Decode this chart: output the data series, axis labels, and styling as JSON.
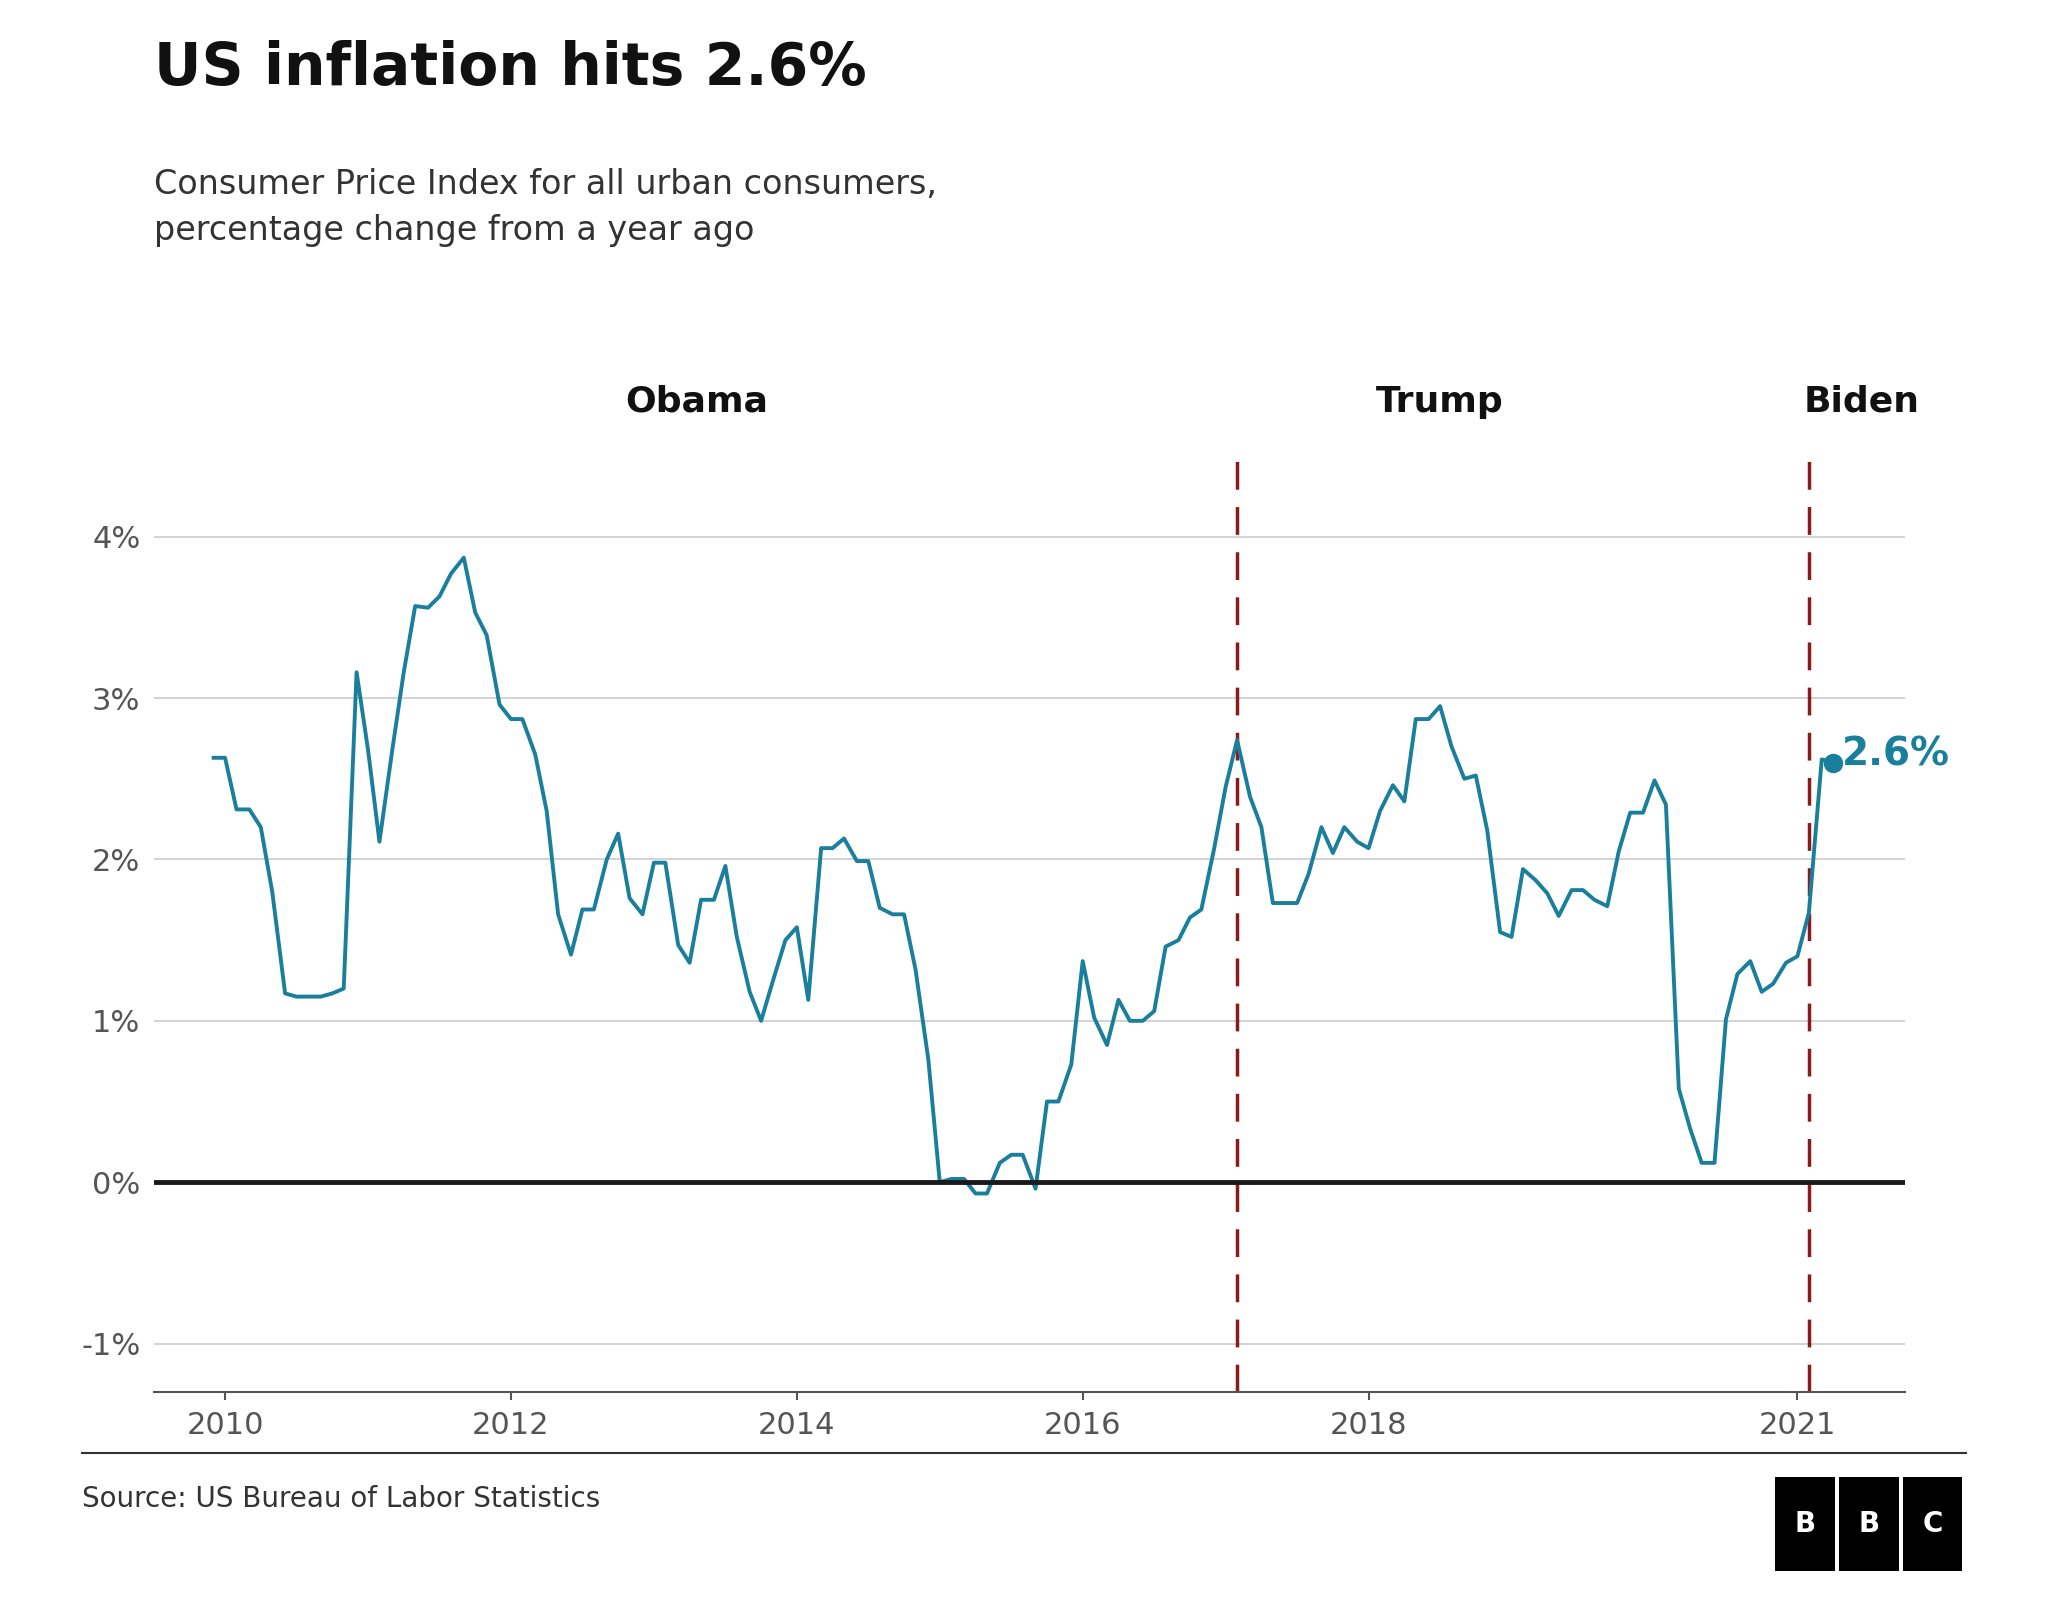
{
  "title": "US inflation hits 2.6%",
  "subtitle": "Consumer Price Index for all urban consumers,\npercentage change from a year ago",
  "source": "Source: US Bureau of Labor Statistics",
  "line_color": "#1a7f9c",
  "zero_line_color": "#1a1a1a",
  "grid_color": "#cccccc",
  "dashed_line_color": "#8b1a1a",
  "annotation_color": "#1a7f9c",
  "title_fontsize": 42,
  "subtitle_fontsize": 24,
  "axis_label_fontsize": 22,
  "annotation_fontsize": 28,
  "president_fontsize": 26,
  "source_fontsize": 20,
  "obama_x": 2013.3,
  "trump_x": 2018.5,
  "biden_x": 2021.45,
  "trump_line_x": 2017.08,
  "biden_line_x": 2021.08,
  "ylim": [
    -1.3,
    4.5
  ],
  "yticks": [
    -1,
    0,
    1,
    2,
    3,
    4
  ],
  "xticks": [
    2010,
    2012,
    2014,
    2016,
    2018,
    2021
  ],
  "xlim_left": 2009.5,
  "xlim_right": 2021.75,
  "dates": [
    2009.92,
    2010.0,
    2010.08,
    2010.17,
    2010.25,
    2010.33,
    2010.42,
    2010.5,
    2010.58,
    2010.67,
    2010.75,
    2010.83,
    2010.92,
    2011.0,
    2011.08,
    2011.17,
    2011.25,
    2011.33,
    2011.42,
    2011.5,
    2011.58,
    2011.67,
    2011.75,
    2011.83,
    2011.92,
    2012.0,
    2012.08,
    2012.17,
    2012.25,
    2012.33,
    2012.42,
    2012.5,
    2012.58,
    2012.67,
    2012.75,
    2012.83,
    2012.92,
    2013.0,
    2013.08,
    2013.17,
    2013.25,
    2013.33,
    2013.42,
    2013.5,
    2013.58,
    2013.67,
    2013.75,
    2013.83,
    2013.92,
    2014.0,
    2014.08,
    2014.17,
    2014.25,
    2014.33,
    2014.42,
    2014.5,
    2014.58,
    2014.67,
    2014.75,
    2014.83,
    2014.92,
    2015.0,
    2015.08,
    2015.17,
    2015.25,
    2015.33,
    2015.42,
    2015.5,
    2015.58,
    2015.67,
    2015.75,
    2015.83,
    2015.92,
    2016.0,
    2016.08,
    2016.17,
    2016.25,
    2016.33,
    2016.42,
    2016.5,
    2016.58,
    2016.67,
    2016.75,
    2016.83,
    2016.92,
    2017.0,
    2017.08,
    2017.17,
    2017.25,
    2017.33,
    2017.42,
    2017.5,
    2017.58,
    2017.67,
    2017.75,
    2017.83,
    2017.92,
    2018.0,
    2018.08,
    2018.17,
    2018.25,
    2018.33,
    2018.42,
    2018.5,
    2018.58,
    2018.67,
    2018.75,
    2018.83,
    2018.92,
    2019.0,
    2019.08,
    2019.17,
    2019.25,
    2019.33,
    2019.42,
    2019.5,
    2019.58,
    2019.67,
    2019.75,
    2019.83,
    2019.92,
    2020.0,
    2020.08,
    2020.17,
    2020.25,
    2020.33,
    2020.42,
    2020.5,
    2020.58,
    2020.67,
    2020.75,
    2020.83,
    2020.92,
    2021.0,
    2021.08,
    2021.17,
    2021.25
  ],
  "values": [
    2.63,
    2.63,
    2.31,
    2.31,
    2.2,
    1.8,
    1.17,
    1.15,
    1.15,
    1.15,
    1.17,
    1.2,
    3.16,
    2.68,
    2.11,
    2.68,
    3.16,
    3.57,
    3.56,
    3.63,
    3.77,
    3.87,
    3.53,
    3.39,
    2.96,
    2.87,
    2.87,
    2.65,
    2.3,
    1.66,
    1.41,
    1.69,
    1.69,
    2.0,
    2.16,
    1.76,
    1.66,
    1.98,
    1.98,
    1.47,
    1.36,
    1.75,
    1.75,
    1.96,
    1.52,
    1.18,
    1.0,
    1.24,
    1.5,
    1.58,
    1.13,
    2.07,
    2.07,
    2.13,
    1.99,
    1.99,
    1.7,
    1.66,
    1.66,
    1.32,
    0.76,
    0.0,
    0.02,
    0.02,
    -0.07,
    -0.07,
    0.12,
    0.17,
    0.17,
    -0.04,
    0.5,
    0.5,
    0.73,
    1.37,
    1.02,
    0.85,
    1.13,
    1.0,
    1.0,
    1.06,
    1.46,
    1.5,
    1.64,
    1.69,
    2.07,
    2.45,
    2.74,
    2.39,
    2.2,
    1.73,
    1.73,
    1.73,
    1.91,
    2.2,
    2.04,
    2.2,
    2.11,
    2.07,
    2.3,
    2.46,
    2.36,
    2.87,
    2.87,
    2.95,
    2.7,
    2.5,
    2.52,
    2.18,
    1.55,
    1.52,
    1.94,
    1.87,
    1.79,
    1.65,
    1.81,
    1.81,
    1.75,
    1.71,
    2.05,
    2.29,
    2.29,
    2.49,
    2.34,
    0.58,
    0.33,
    0.12,
    0.12,
    1.01,
    1.29,
    1.37,
    1.18,
    1.23,
    1.36,
    1.4,
    1.67,
    2.62,
    2.6
  ],
  "last_x": 2021.25,
  "last_y": 2.6
}
